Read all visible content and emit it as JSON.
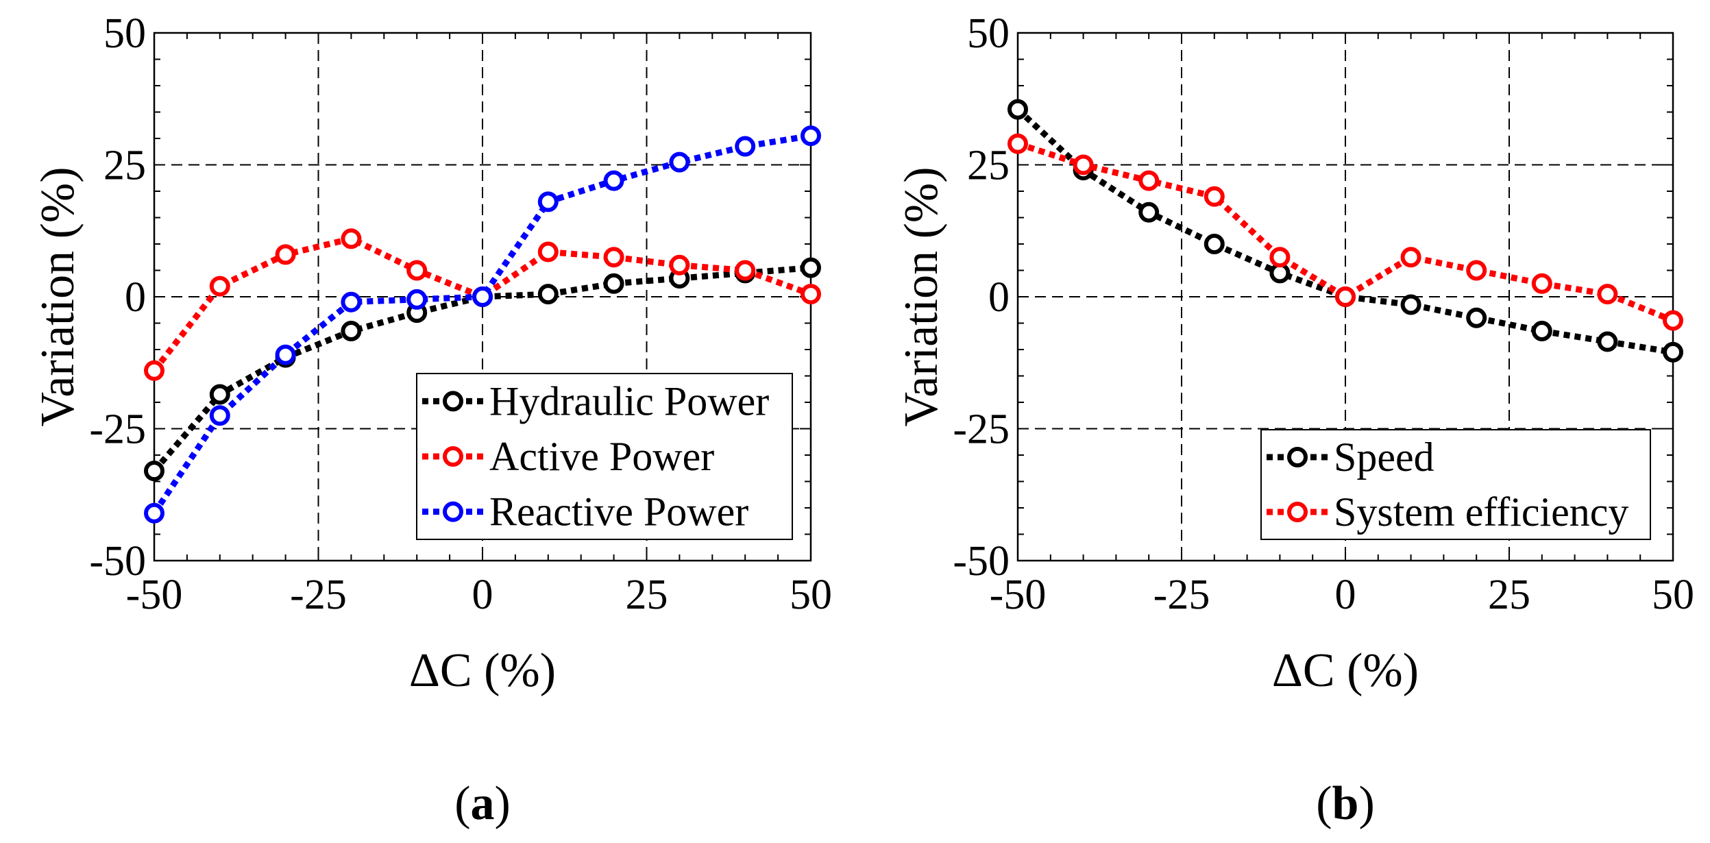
{
  "chart_data": [
    {
      "type": "line",
      "panel_label": "a",
      "caption_open": "(",
      "caption_close": ")",
      "xlabel": "ΔC (%)",
      "ylabel": "Variation (%)",
      "xlim": [
        -50,
        50
      ],
      "ylim": [
        -50,
        50
      ],
      "xticks": [
        -50,
        -25,
        0,
        25,
        50
      ],
      "yticks": [
        -50,
        -25,
        0,
        25,
        50
      ],
      "grid": true,
      "legend_position": "lower-right",
      "x": [
        -50,
        -40,
        -30,
        -20,
        -10,
        0,
        10,
        20,
        30,
        40,
        50
      ],
      "series": [
        {
          "name": "Hydraulic Power",
          "color": "#000000",
          "values": [
            -33,
            -18.5,
            -11.5,
            -6.5,
            -3,
            0,
            0.5,
            2.5,
            3.5,
            4.5,
            5.5
          ]
        },
        {
          "name": "Active Power",
          "color": "#ff0000",
          "values": [
            -14,
            2,
            8,
            11,
            5,
            0,
            8.5,
            7.5,
            6,
            5,
            0.5
          ]
        },
        {
          "name": "Reactive Power",
          "color": "#0000ff",
          "values": [
            -41,
            -22.5,
            -11,
            -1,
            -0.5,
            0,
            18,
            22,
            25.5,
            28.5,
            30.5
          ]
        }
      ]
    },
    {
      "type": "line",
      "panel_label": "b",
      "caption_open": "(",
      "caption_close": ")",
      "xlabel": "ΔC (%)",
      "ylabel": "Variation (%)",
      "xlim": [
        -50,
        50
      ],
      "ylim": [
        -50,
        50
      ],
      "xticks": [
        -50,
        -25,
        0,
        25,
        50
      ],
      "yticks": [
        -50,
        -25,
        0,
        25,
        50
      ],
      "grid": true,
      "legend_position": "lower-right",
      "x": [
        -50,
        -40,
        -30,
        -20,
        -10,
        0,
        10,
        20,
        30,
        40,
        50
      ],
      "series": [
        {
          "name": "Speed",
          "color": "#000000",
          "values": [
            35.5,
            24,
            16,
            10,
            4.5,
            0,
            -1.5,
            -4,
            -6.5,
            -8.5,
            -10.5
          ]
        },
        {
          "name": "System efficiency",
          "color": "#ff0000",
          "values": [
            29,
            25,
            22,
            19,
            7.5,
            0,
            7.5,
            5,
            2.5,
            0.5,
            -4.5
          ]
        }
      ]
    }
  ]
}
